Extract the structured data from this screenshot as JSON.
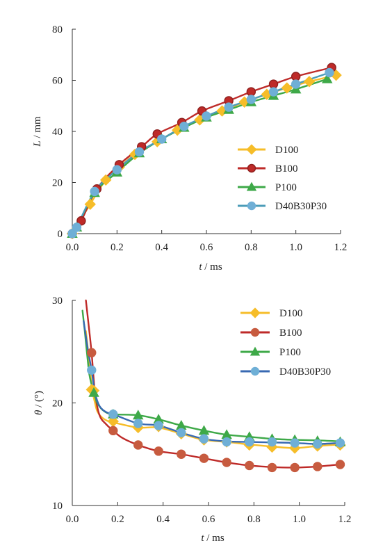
{
  "chart_data": [
    {
      "type": "line",
      "xlabel_var": "t",
      "xlabel_unit": " / ms",
      "ylabel_var": "L",
      "ylabel_unit": " / mm",
      "xlim": [
        0,
        1.2
      ],
      "ylim": [
        0,
        80
      ],
      "xticks": [
        "0.0",
        "0.2",
        "0.4",
        "0.6",
        "0.8",
        "1.0",
        "1.2"
      ],
      "yticks": [
        "0",
        "20",
        "40",
        "60",
        "80"
      ],
      "legend_position": "right",
      "series": [
        {
          "name": "D100",
          "color": "#F6BD29",
          "marker": "diamond",
          "x": [
            0.0,
            0.08,
            0.15,
            0.21,
            0.28,
            0.38,
            0.47,
            0.57,
            0.67,
            0.77,
            0.87,
            0.96,
            1.06,
            1.18
          ],
          "y": [
            0,
            11.5,
            21,
            26,
            31,
            36,
            40.5,
            44.5,
            48,
            51.5,
            54.5,
            57,
            59.5,
            62
          ]
        },
        {
          "name": "B100",
          "color": "#BE2A28",
          "marker": "circle",
          "x": [
            0.0,
            0.04,
            0.11,
            0.21,
            0.31,
            0.38,
            0.49,
            0.58,
            0.7,
            0.8,
            0.9,
            1.0,
            1.16
          ],
          "y": [
            0,
            5,
            17.5,
            27,
            34,
            39,
            43.5,
            48,
            52,
            55.5,
            58.5,
            61.5,
            65
          ]
        },
        {
          "name": "P100",
          "color": "#3EA948",
          "marker": "triangle",
          "x": [
            0.0,
            0.02,
            0.1,
            0.2,
            0.3,
            0.4,
            0.5,
            0.6,
            0.7,
            0.8,
            0.9,
            1.0,
            1.14
          ],
          "y": [
            0,
            2.5,
            16,
            24,
            31.5,
            37,
            41.5,
            45.5,
            48.5,
            51.5,
            54,
            56.5,
            60.5
          ]
        },
        {
          "name": "D40B30P30",
          "color": "#4B9CB8",
          "marker": "circle",
          "marker_color": "#6FAFD6",
          "x": [
            0.0,
            0.02,
            0.1,
            0.2,
            0.3,
            0.4,
            0.5,
            0.6,
            0.7,
            0.8,
            0.9,
            1.0,
            1.15
          ],
          "y": [
            0,
            2.5,
            16.5,
            25,
            32,
            37,
            42,
            46,
            49.5,
            52.5,
            55.5,
            58.5,
            63
          ]
        }
      ]
    },
    {
      "type": "line",
      "xlabel_var": "t",
      "xlabel_unit": " / ms",
      "ylabel_var": "θ",
      "ylabel_unit": " / (°)",
      "xlim": [
        0,
        1.2
      ],
      "ylim": [
        10,
        30
      ],
      "xticks": [
        "0.0",
        "0.2",
        "0.4",
        "0.6",
        "0.8",
        "1.0",
        "1.2"
      ],
      "yticks": [
        "10",
        "20",
        "30"
      ],
      "legend_position": "top-right",
      "series": [
        {
          "name": "D100",
          "color": "#F6BD29",
          "marker": "diamond",
          "x": [
            0.085,
            0.095,
            0.18,
            0.29,
            0.38,
            0.48,
            0.58,
            0.68,
            0.78,
            0.88,
            0.98,
            1.08,
            1.18
          ],
          "y": [
            21.3,
            21.2,
            18.2,
            17.6,
            17.7,
            17.0,
            16.4,
            16.2,
            15.9,
            15.7,
            15.6,
            15.8,
            15.9
          ],
          "curve_x": [
            0.06,
            0.07,
            0.08,
            0.085,
            0.09,
            0.1,
            0.11,
            0.13,
            0.16,
            0.2,
            0.29,
            0.38,
            0.48,
            0.58,
            0.68,
            0.78,
            0.88,
            0.98,
            1.08,
            1.18
          ],
          "curve_y": [
            27.0,
            25.0,
            22.8,
            21.8,
            21.0,
            20.0,
            19.2,
            18.6,
            18.2,
            18.0,
            17.6,
            17.6,
            17.0,
            16.4,
            16.2,
            15.95,
            15.75,
            15.6,
            15.8,
            15.95
          ]
        },
        {
          "name": "B100",
          "color": "#BE2A28",
          "marker": "circle",
          "marker_color": "#C75B3F",
          "x": [
            0.085,
            0.18,
            0.29,
            0.38,
            0.48,
            0.58,
            0.68,
            0.78,
            0.88,
            0.98,
            1.08,
            1.18
          ],
          "y": [
            24.9,
            17.3,
            15.9,
            15.3,
            15.0,
            14.6,
            14.2,
            13.9,
            13.7,
            13.7,
            13.8,
            14.0
          ],
          "curve_x": [
            0.06,
            0.07,
            0.085,
            0.1,
            0.12,
            0.15,
            0.18,
            0.22,
            0.29,
            0.38,
            0.48,
            0.58,
            0.68,
            0.78,
            0.88,
            0.98,
            1.08,
            1.18
          ],
          "curve_y": [
            30.0,
            28.0,
            24.9,
            21.0,
            18.8,
            17.9,
            17.3,
            16.6,
            15.9,
            15.3,
            15.0,
            14.6,
            14.2,
            13.9,
            13.75,
            13.7,
            13.8,
            14.0
          ]
        },
        {
          "name": "P100",
          "color": "#3EA948",
          "marker": "triangle",
          "x": [
            0.095,
            0.18,
            0.29,
            0.38,
            0.48,
            0.58,
            0.68,
            0.78,
            0.88,
            0.98,
            1.08,
            1.18
          ],
          "y": [
            21.0,
            18.9,
            18.8,
            18.4,
            17.8,
            17.3,
            16.9,
            16.7,
            16.5,
            16.4,
            16.3,
            16.2
          ],
          "curve_x": [
            0.045,
            0.055,
            0.065,
            0.075,
            0.085,
            0.095,
            0.11,
            0.14,
            0.18,
            0.29,
            0.38,
            0.48,
            0.58,
            0.68,
            0.78,
            0.88,
            0.98,
            1.08,
            1.18
          ],
          "curve_y": [
            29.0,
            27.0,
            24.8,
            22.8,
            21.8,
            21.0,
            20.0,
            19.2,
            18.9,
            18.8,
            18.4,
            17.8,
            17.3,
            16.9,
            16.7,
            16.5,
            16.4,
            16.35,
            16.25
          ]
        },
        {
          "name": "D40B30P30",
          "color": "#3869B2",
          "marker": "circle",
          "marker_color": "#6FAFD6",
          "x": [
            0.085,
            0.18,
            0.29,
            0.38,
            0.48,
            0.58,
            0.68,
            0.78,
            0.88,
            0.98,
            1.08,
            1.18
          ],
          "y": [
            23.2,
            18.9,
            18.0,
            17.8,
            17.1,
            16.5,
            16.2,
            16.2,
            16.2,
            16.1,
            16.0,
            16.1
          ],
          "curve_x": [
            0.05,
            0.06,
            0.07,
            0.085,
            0.1,
            0.12,
            0.15,
            0.18,
            0.29,
            0.38,
            0.48,
            0.58,
            0.68,
            0.78,
            0.88,
            0.98,
            1.08,
            1.18
          ],
          "curve_y": [
            28.0,
            26.5,
            25.0,
            23.2,
            21.0,
            19.7,
            19.1,
            18.9,
            18.0,
            17.8,
            17.1,
            16.5,
            16.25,
            16.2,
            16.15,
            16.1,
            16.0,
            16.1
          ]
        }
      ]
    }
  ]
}
